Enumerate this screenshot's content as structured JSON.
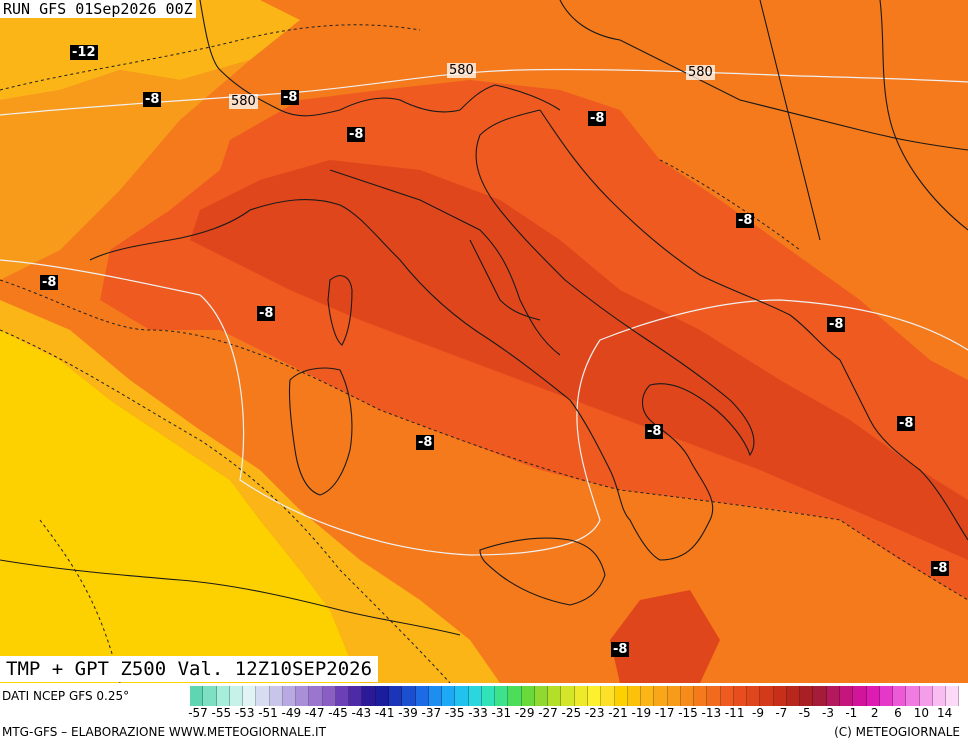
{
  "header": {
    "run_label": "RUN GFS 01Sep2026 00Z"
  },
  "map": {
    "title": "TMP + GPT Z500 Val. 12Z10SEP2026",
    "variable": "Temperature 500 hPa + geopotential",
    "colors": {
      "deep_red": "#e0461c",
      "red_orange": "#ee5a20",
      "orange": "#f47a1c",
      "light_orange": "#f89a1a",
      "amber": "#fbb516",
      "yellow": "#fdd000",
      "coast_line": "#1a1a1a",
      "gpt_line": "#f0f0f0"
    },
    "temperature_labels": [
      {
        "id": "t1",
        "text": "-12"
      },
      {
        "id": "t2",
        "text": "-8"
      },
      {
        "id": "t3",
        "text": "-8"
      },
      {
        "id": "t4",
        "text": "-8"
      },
      {
        "id": "t5",
        "text": "-8"
      },
      {
        "id": "t6",
        "text": "-8"
      },
      {
        "id": "t7",
        "text": "-8"
      },
      {
        "id": "t8",
        "text": "-8"
      },
      {
        "id": "t9",
        "text": "-8"
      },
      {
        "id": "t10",
        "text": "-8"
      },
      {
        "id": "t11",
        "text": "-8"
      },
      {
        "id": "t12",
        "text": "-8"
      },
      {
        "id": "t13",
        "text": "-8"
      },
      {
        "id": "t14",
        "text": "-8"
      }
    ],
    "gpt_labels": [
      {
        "id": "g1",
        "text": "580"
      },
      {
        "id": "g2",
        "text": "580"
      },
      {
        "id": "g3",
        "text": "580"
      }
    ]
  },
  "footer": {
    "source": "DATI NCEP GFS 0.25°",
    "credit_left": "MTG-GFS – ELABORAZIONE WWW.METEOGIORNALE.IT",
    "credit_right": "(C) METEOGIORNALE"
  },
  "legend": {
    "ticks": [
      "-57",
      "-55",
      "-53",
      "-51",
      "-49",
      "-47",
      "-45",
      "-43",
      "-41",
      "-39",
      "-37",
      "-35",
      "-33",
      "-31",
      "-29",
      "-27",
      "-25",
      "-23",
      "-21",
      "-19",
      "-17",
      "-15",
      "-13",
      "-11",
      "-9",
      "-7",
      "-5",
      "-3",
      "-1",
      "2",
      "6",
      "10",
      "14"
    ],
    "swatches": [
      "#5fd6b0",
      "#7ee0c3",
      "#a6eddc",
      "#c7f2e9",
      "#e0f4f5",
      "#d8dcf0",
      "#c9c4ea",
      "#b9a9e2",
      "#a98fd8",
      "#9a76cf",
      "#8a5fc4",
      "#6b3fb5",
      "#4d2aa7",
      "#2b1a98",
      "#1a1e9c",
      "#1b34b8",
      "#1c4fd0",
      "#1d6be4",
      "#1d8df0",
      "#1da9f5",
      "#22c2ef",
      "#2ad7dd",
      "#30e3b8",
      "#3de28a",
      "#4cde5a",
      "#6ad93a",
      "#8fd930",
      "#b3df2b",
      "#d4e52a",
      "#eeea2a",
      "#fdf02d",
      "#fde02a",
      "#fdd000",
      "#fcc10b",
      "#fbb516",
      "#f9a718",
      "#f89a1a",
      "#f68a1b",
      "#f47a1c",
      "#f26a1e",
      "#ee5a20",
      "#e84d1e",
      "#e0461c",
      "#d43a1a",
      "#c62f1a",
      "#b8261e",
      "#a81f24",
      "#a51c3a",
      "#b3195c",
      "#c4167c",
      "#d2149a",
      "#dd1cb4",
      "#e638c8",
      "#ec5ad6",
      "#f07ce2",
      "#f49eea",
      "#f8bdf1",
      "#fbd9f7"
    ]
  }
}
